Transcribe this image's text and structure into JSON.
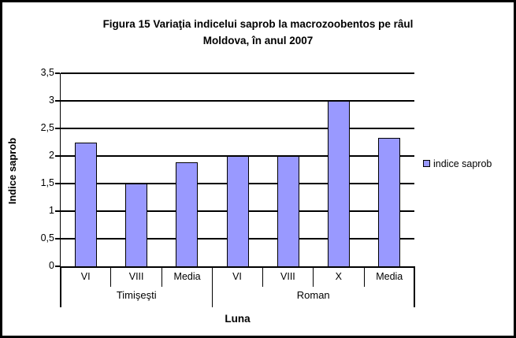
{
  "title": {
    "line1": "Figura 15 Variaţia indicelui saprob la macrozoobentos pe râul",
    "line2": "Moldova, în anul 2007"
  },
  "chart_data": {
    "type": "bar",
    "title": "Figura 15 Variaţia indicelui saprob la macrozoobentos pe râul Moldova, în anul 2007",
    "ylabel": "Indice saprob",
    "xlabel": "Luna",
    "ylim": [
      0,
      3.5
    ],
    "ytick_step": 0.5,
    "ytick_labels": [
      "0",
      "0,5",
      "1",
      "1,5",
      "2",
      "2,5",
      "3",
      "3,5"
    ],
    "grid": true,
    "categories": [
      "VI",
      "VIII",
      "Media",
      "VI",
      "VIII",
      "X",
      "Media"
    ],
    "values": [
      2.25,
      1.5,
      1.88,
      2,
      2,
      3,
      2.33
    ],
    "groups": [
      {
        "label": "Timişeşti",
        "categories": [
          "VI",
          "VIII",
          "Media"
        ],
        "values": [
          2.25,
          1.5,
          1.88
        ]
      },
      {
        "label": "Roman",
        "categories": [
          "VI",
          "VIII",
          "X",
          "Media"
        ],
        "values": [
          2,
          2,
          3,
          2.33
        ]
      }
    ],
    "legend": {
      "label": "indice saprob",
      "position": "right"
    },
    "colors": {
      "bar_fill": "#9999FF",
      "bar_border": "#000000",
      "axis": "#000000",
      "background": "#FFFFFF",
      "frame_border": "#000000"
    }
  }
}
